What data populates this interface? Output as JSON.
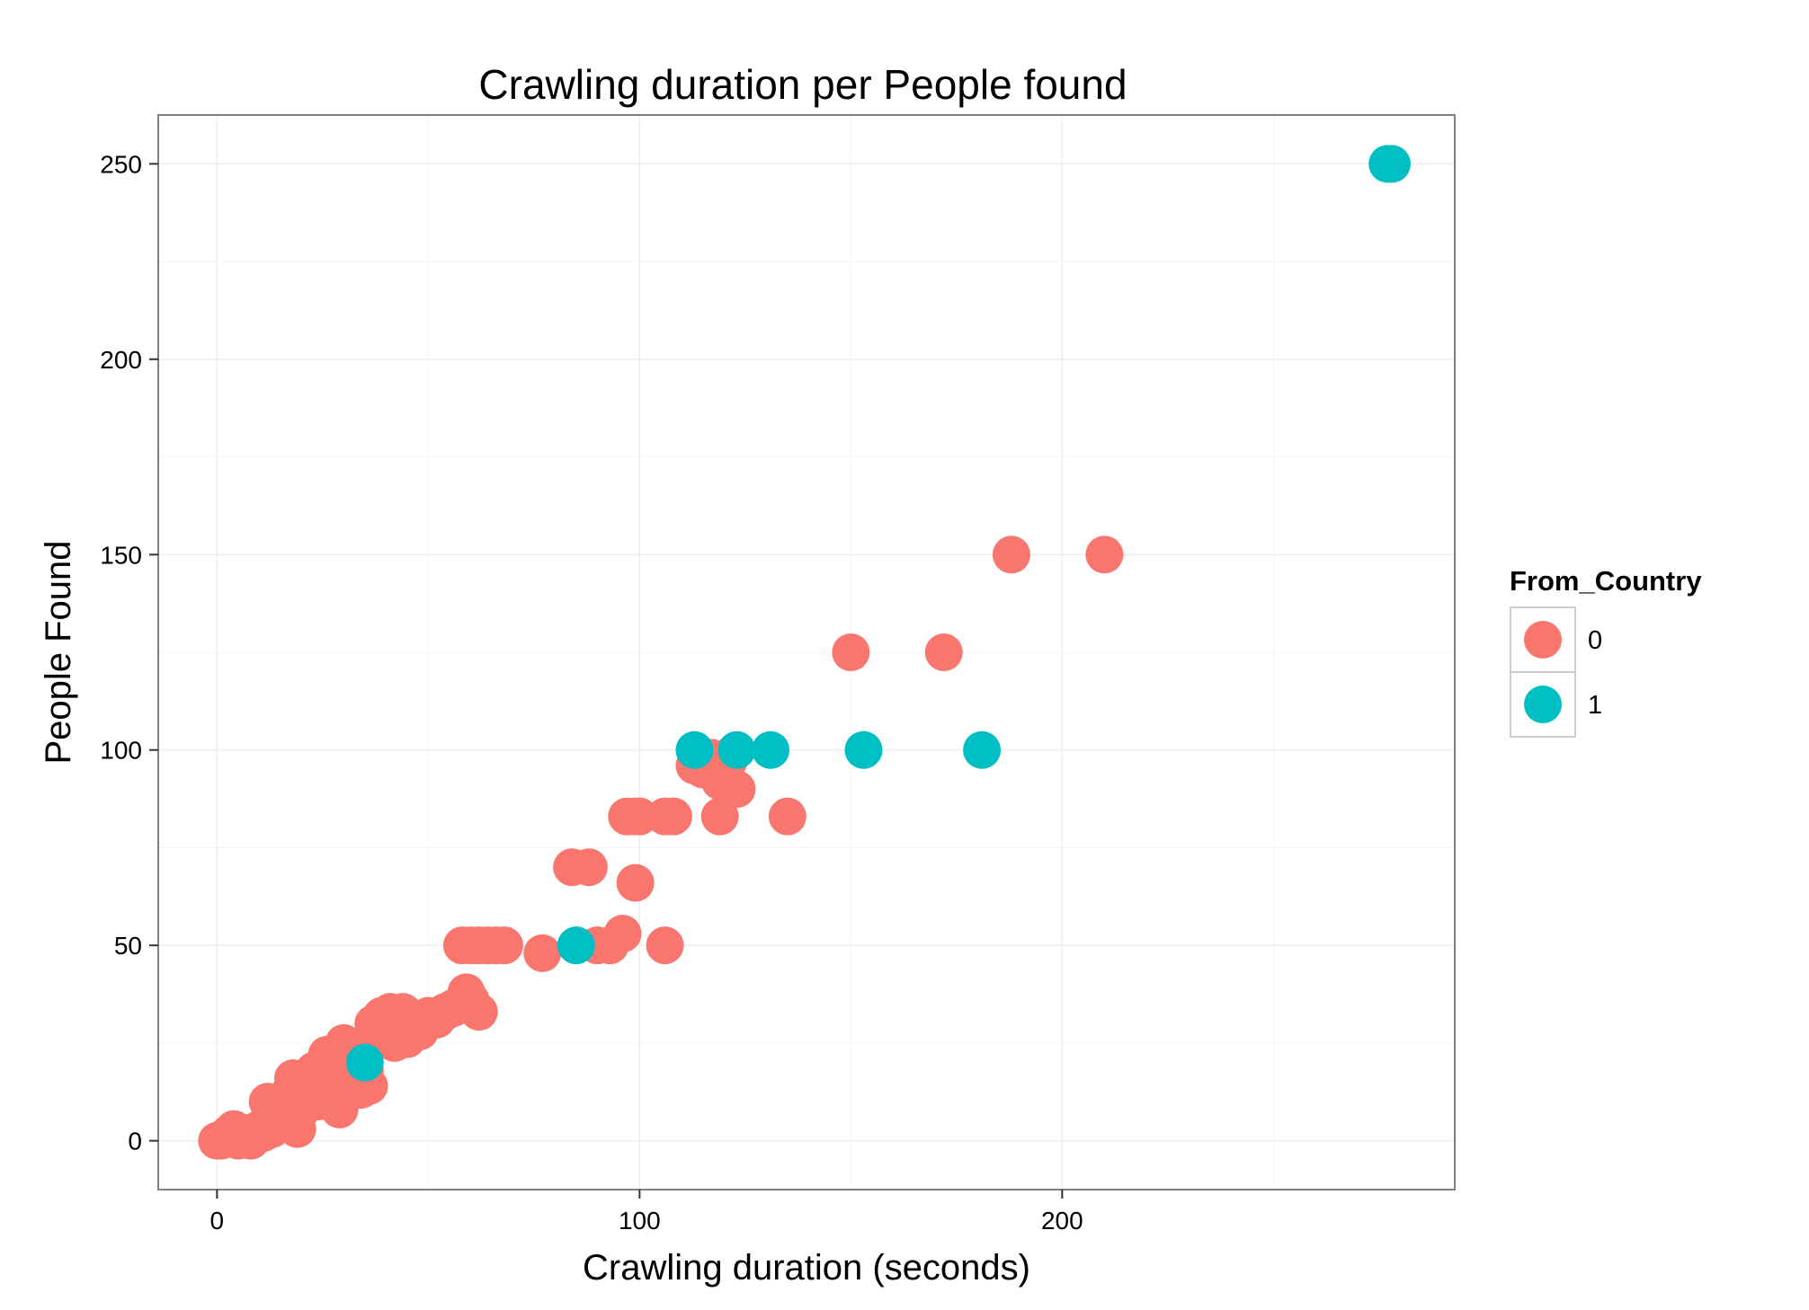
{
  "chart_data": {
    "type": "scatter",
    "title": "Crawling duration per People found",
    "xlabel": "Crawling duration (seconds)",
    "ylabel": "People Found",
    "xlim": [
      -13.9,
      292.9
    ],
    "ylim": [
      -12.5,
      262.5
    ],
    "xticks": [
      0,
      100,
      200
    ],
    "yticks": [
      0,
      50,
      100,
      150,
      200,
      250
    ],
    "grid": true,
    "legend": {
      "title": "From_Country",
      "position": "right"
    },
    "series": [
      {
        "name": "0",
        "color": "#F8766D",
        "points": [
          [
            0,
            0
          ],
          [
            1,
            0
          ],
          [
            2,
            1
          ],
          [
            3,
            2
          ],
          [
            4,
            3
          ],
          [
            5,
            0
          ],
          [
            6,
            1
          ],
          [
            7,
            2
          ],
          [
            8,
            0
          ],
          [
            9,
            1
          ],
          [
            10,
            3
          ],
          [
            11,
            2
          ],
          [
            12,
            5
          ],
          [
            13,
            3
          ],
          [
            12,
            10
          ],
          [
            14,
            8
          ],
          [
            15,
            6
          ],
          [
            16,
            9
          ],
          [
            17,
            12
          ],
          [
            18,
            10
          ],
          [
            19,
            3
          ],
          [
            20,
            8
          ],
          [
            18,
            16
          ],
          [
            21,
            14
          ],
          [
            22,
            12
          ],
          [
            23,
            18
          ],
          [
            24,
            10
          ],
          [
            25,
            15
          ],
          [
            26,
            22
          ],
          [
            27,
            20
          ],
          [
            28,
            18
          ],
          [
            29,
            8
          ],
          [
            30,
            25
          ],
          [
            31,
            20
          ],
          [
            32,
            16
          ],
          [
            33,
            22
          ],
          [
            34,
            13
          ],
          [
            35,
            18
          ],
          [
            36,
            14
          ],
          [
            37,
            30
          ],
          [
            38,
            26
          ],
          [
            39,
            32
          ],
          [
            40,
            28
          ],
          [
            41,
            33
          ],
          [
            42,
            25
          ],
          [
            43,
            30
          ],
          [
            44,
            33
          ],
          [
            45,
            26
          ],
          [
            46,
            30
          ],
          [
            48,
            28
          ],
          [
            50,
            32
          ],
          [
            52,
            31
          ],
          [
            54,
            33
          ],
          [
            56,
            34
          ],
          [
            58,
            50
          ],
          [
            60,
            50
          ],
          [
            62,
            50
          ],
          [
            64,
            50
          ],
          [
            66,
            50
          ],
          [
            68,
            50
          ],
          [
            59,
            38
          ],
          [
            60,
            36
          ],
          [
            61,
            34
          ],
          [
            62,
            33
          ],
          [
            77,
            48
          ],
          [
            84,
            70
          ],
          [
            88,
            70
          ],
          [
            90,
            50
          ],
          [
            93,
            50
          ],
          [
            96,
            53
          ],
          [
            97,
            83
          ],
          [
            99,
            83
          ],
          [
            100,
            83
          ],
          [
            99,
            66
          ],
          [
            106,
            83
          ],
          [
            108,
            83
          ],
          [
            106,
            50
          ],
          [
            113,
            96
          ],
          [
            115,
            95
          ],
          [
            117,
            98
          ],
          [
            119,
            92
          ],
          [
            121,
            97
          ],
          [
            122,
            99
          ],
          [
            123,
            90
          ],
          [
            119,
            83
          ],
          [
            135,
            83
          ],
          [
            150,
            125
          ],
          [
            172,
            125
          ],
          [
            188,
            150
          ],
          [
            210,
            150
          ]
        ]
      },
      {
        "name": "1",
        "color": "#00BFC4",
        "points": [
          [
            35,
            20
          ],
          [
            85,
            50
          ],
          [
            113,
            100
          ],
          [
            123,
            100
          ],
          [
            131,
            100
          ],
          [
            153,
            100
          ],
          [
            181,
            100
          ],
          [
            277,
            250
          ],
          [
            278,
            250
          ]
        ]
      }
    ]
  }
}
